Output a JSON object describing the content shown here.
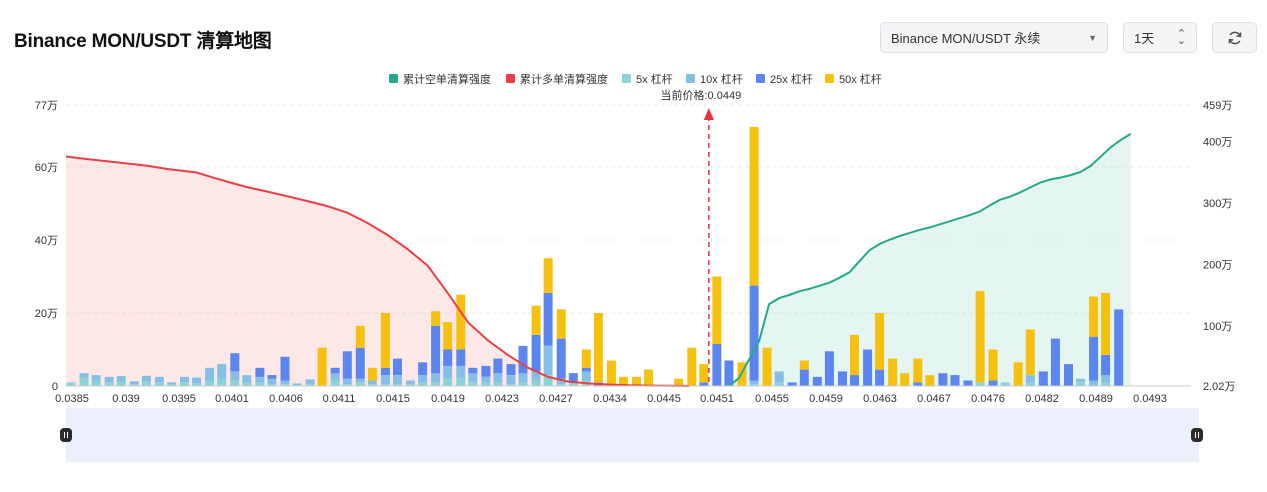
{
  "header": {
    "title": "Binance MON/USDT 清算地图",
    "pair_select": "Binance MON/USDT 永续",
    "range_select": "1天"
  },
  "colors": {
    "short_cum": "#26a98a",
    "long_cum": "#ee3e45",
    "lev_5x": "#88d4d6",
    "lev_10x": "#86bfe6",
    "lev_25x": "#5b86ef",
    "lev_50x": "#f6c10e",
    "price_marker": "#e5323a"
  },
  "chart_data": {
    "type": "bar",
    "legend": [
      {
        "name": "累计空单清算强度",
        "color": "#26a98a"
      },
      {
        "name": "累计多单清算强度",
        "color": "#ee3e45"
      },
      {
        "name": "5x 杠杆",
        "color": "#88d4d6"
      },
      {
        "name": "10x 杠杆",
        "color": "#86bfe6"
      },
      {
        "name": "25x 杠杆",
        "color": "#5b86ef"
      },
      {
        "name": "50x 杠杆",
        "color": "#f6c10e"
      }
    ],
    "legend_position": "top-center",
    "current_price_label": "当前价格:0.0449",
    "current_price": 0.0449,
    "x_ticks": [
      "0.0385",
      "0.039",
      "0.0395",
      "0.0401",
      "0.0406",
      "0.0411",
      "0.0415",
      "0.0419",
      "0.0423",
      "0.0427",
      "0.0434",
      "0.0445",
      "0.0451",
      "0.0455",
      "0.0459",
      "0.0463",
      "0.0467",
      "0.0476",
      "0.0482",
      "0.0489",
      "0.0493"
    ],
    "x_range": [
      0.0385,
      0.0497
    ],
    "y_left_ticks": [
      "0",
      "20万",
      "40万",
      "60万",
      "77万"
    ],
    "y_left_range": [
      0,
      770000
    ],
    "y_right_ticks": [
      "2.02万",
      "100万",
      "200万",
      "300万",
      "400万",
      "459万"
    ],
    "y_right_range": [
      20200,
      4590000
    ],
    "grid": true,
    "bars": [
      {
        "x": 0.03855,
        "l5": 10000,
        "l10": 0,
        "l25": 0,
        "l50": 0
      },
      {
        "x": 0.03868,
        "l5": 20000,
        "l10": 15000,
        "l25": 0,
        "l50": 0
      },
      {
        "x": 0.0388,
        "l5": 15000,
        "l10": 15000,
        "l25": 0,
        "l50": 0
      },
      {
        "x": 0.03893,
        "l5": 10000,
        "l10": 15000,
        "l25": 0,
        "l50": 0
      },
      {
        "x": 0.03905,
        "l5": 12000,
        "l10": 15000,
        "l25": 0,
        "l50": 0
      },
      {
        "x": 0.03918,
        "l5": 5000,
        "l10": 8000,
        "l25": 0,
        "l50": 0
      },
      {
        "x": 0.0393,
        "l5": 13000,
        "l10": 15000,
        "l25": 0,
        "l50": 0
      },
      {
        "x": 0.03943,
        "l5": 10000,
        "l10": 15000,
        "l25": 0,
        "l50": 0
      },
      {
        "x": 0.03955,
        "l5": 5000,
        "l10": 5000,
        "l25": 0,
        "l50": 0
      },
      {
        "x": 0.03968,
        "l5": 10000,
        "l10": 15000,
        "l25": 0,
        "l50": 0
      },
      {
        "x": 0.0398,
        "l5": 8000,
        "l10": 15000,
        "l25": 0,
        "l50": 0
      },
      {
        "x": 0.03993,
        "l5": 15000,
        "l10": 35000,
        "l25": 0,
        "l50": 0
      },
      {
        "x": 0.04005,
        "l5": 20000,
        "l10": 40000,
        "l25": 0,
        "l50": 0
      },
      {
        "x": 0.04018,
        "l5": 15000,
        "l10": 25000,
        "l25": 50000,
        "l50": 0
      },
      {
        "x": 0.0403,
        "l5": 10000,
        "l10": 20000,
        "l25": 0,
        "l50": 0
      },
      {
        "x": 0.04043,
        "l5": 10000,
        "l10": 15000,
        "l25": 25000,
        "l50": 0
      },
      {
        "x": 0.04055,
        "l5": 5000,
        "l10": 15000,
        "l25": 10000,
        "l50": 0
      },
      {
        "x": 0.04068,
        "l5": 5000,
        "l10": 10000,
        "l25": 65000,
        "l50": 0
      },
      {
        "x": 0.0408,
        "l5": 2000,
        "l10": 5000,
        "l25": 0,
        "l50": 0
      },
      {
        "x": 0.04093,
        "l5": 5000,
        "l10": 13000,
        "l25": 0,
        "l50": 0
      },
      {
        "x": 0.04105,
        "l5": 0,
        "l10": 0,
        "l25": 0,
        "l50": 105000
      },
      {
        "x": 0.04118,
        "l5": 15000,
        "l10": 20000,
        "l25": 15000,
        "l50": 0
      },
      {
        "x": 0.0413,
        "l5": 5000,
        "l10": 15000,
        "l25": 75000,
        "l50": 0
      },
      {
        "x": 0.04143,
        "l5": 10000,
        "l10": 10000,
        "l25": 85000,
        "l50": 60000
      },
      {
        "x": 0.04155,
        "l5": 5000,
        "l10": 10000,
        "l25": 0,
        "l50": 35000
      },
      {
        "x": 0.04168,
        "l5": 5000,
        "l10": 25000,
        "l25": 20000,
        "l50": 150000
      },
      {
        "x": 0.0418,
        "l5": 5000,
        "l10": 25000,
        "l25": 45000,
        "l50": 0
      },
      {
        "x": 0.04193,
        "l5": 5000,
        "l10": 10000,
        "l25": 0,
        "l50": 0
      },
      {
        "x": 0.04205,
        "l5": 10000,
        "l10": 20000,
        "l25": 35000,
        "l50": 0
      },
      {
        "x": 0.04218,
        "l5": 10000,
        "l10": 25000,
        "l25": 130000,
        "l50": 40000
      },
      {
        "x": 0.0423,
        "l5": 20000,
        "l10": 35000,
        "l25": 45000,
        "l50": 75000
      },
      {
        "x": 0.04243,
        "l5": 20000,
        "l10": 35000,
        "l25": 45000,
        "l50": 150000
      },
      {
        "x": 0.04255,
        "l5": 10000,
        "l10": 25000,
        "l25": 15000,
        "l50": 0
      },
      {
        "x": 0.04268,
        "l5": 10000,
        "l10": 15000,
        "l25": 30000,
        "l50": 0
      },
      {
        "x": 0.0428,
        "l5": 10000,
        "l10": 25000,
        "l25": 40000,
        "l50": 0
      },
      {
        "x": 0.04293,
        "l5": 5000,
        "l10": 25000,
        "l25": 30000,
        "l50": 0
      },
      {
        "x": 0.04305,
        "l5": 10000,
        "l10": 25000,
        "l25": 75000,
        "l50": 0
      },
      {
        "x": 0.04318,
        "l5": 15000,
        "l10": 25000,
        "l25": 100000,
        "l50": 80000
      },
      {
        "x": 0.0433,
        "l5": 30000,
        "l10": 80000,
        "l25": 145000,
        "l50": 95000
      },
      {
        "x": 0.04343,
        "l5": 5000,
        "l10": 15000,
        "l25": 110000,
        "l50": 80000
      },
      {
        "x": 0.04355,
        "l5": 10000,
        "l10": 0,
        "l25": 25000,
        "l50": 0
      },
      {
        "x": 0.04368,
        "l5": 15000,
        "l10": 25000,
        "l25": 10000,
        "l50": 50000
      },
      {
        "x": 0.0438,
        "l5": 0,
        "l10": 0,
        "l25": 10000,
        "l50": 190000
      },
      {
        "x": 0.04393,
        "l5": 0,
        "l10": 0,
        "l25": 0,
        "l50": 70000
      },
      {
        "x": 0.04405,
        "l5": 0,
        "l10": 0,
        "l25": 0,
        "l50": 25000
      },
      {
        "x": 0.04418,
        "l5": 0,
        "l10": 0,
        "l25": 0,
        "l50": 25000
      },
      {
        "x": 0.0443,
        "l5": 0,
        "l10": 0,
        "l25": 0,
        "l50": 45000
      },
      {
        "x": 0.0446,
        "l5": 0,
        "l10": 0,
        "l25": 0,
        "l50": 20000
      },
      {
        "x": 0.04473,
        "l5": 0,
        "l10": 0,
        "l25": 0,
        "l50": 105000
      },
      {
        "x": 0.04485,
        "l5": 0,
        "l10": 0,
        "l25": 10000,
        "l50": 50000
      },
      {
        "x": 0.04498,
        "l5": 0,
        "l10": 0,
        "l25": 115000,
        "l50": 185000
      },
      {
        "x": 0.0451,
        "l5": 0,
        "l10": 0,
        "l25": 70000,
        "l50": 0
      },
      {
        "x": 0.04523,
        "l5": 0,
        "l10": 0,
        "l25": 0,
        "l50": 65000
      },
      {
        "x": 0.04535,
        "l5": 5000,
        "l10": 10000,
        "l25": 260000,
        "l50": 435000
      },
      {
        "x": 0.04548,
        "l5": 0,
        "l10": 0,
        "l25": 0,
        "l50": 105000
      },
      {
        "x": 0.0456,
        "l5": 10000,
        "l10": 30000,
        "l25": 0,
        "l50": 0
      },
      {
        "x": 0.04573,
        "l5": 0,
        "l10": 0,
        "l25": 10000,
        "l50": 0
      },
      {
        "x": 0.04585,
        "l5": 0,
        "l10": 0,
        "l25": 45000,
        "l50": 25000
      },
      {
        "x": 0.04598,
        "l5": 0,
        "l10": 0,
        "l25": 25000,
        "l50": 0
      },
      {
        "x": 0.0461,
        "l5": 0,
        "l10": 0,
        "l25": 95000,
        "l50": 0
      },
      {
        "x": 0.04623,
        "l5": 0,
        "l10": 0,
        "l25": 40000,
        "l50": 0
      },
      {
        "x": 0.04635,
        "l5": 0,
        "l10": 0,
        "l25": 30000,
        "l50": 110000
      },
      {
        "x": 0.04648,
        "l5": 0,
        "l10": 0,
        "l25": 100000,
        "l50": 0
      },
      {
        "x": 0.0466,
        "l5": 0,
        "l10": 0,
        "l25": 45000,
        "l50": 155000
      },
      {
        "x": 0.04673,
        "l5": 0,
        "l10": 0,
        "l25": 0,
        "l50": 75000
      },
      {
        "x": 0.04685,
        "l5": 0,
        "l10": 0,
        "l25": 0,
        "l50": 35000
      },
      {
        "x": 0.04698,
        "l5": 0,
        "l10": 0,
        "l25": 10000,
        "l50": 65000
      },
      {
        "x": 0.0471,
        "l5": 0,
        "l10": 0,
        "l25": 0,
        "l50": 30000
      },
      {
        "x": 0.04723,
        "l5": 0,
        "l10": 0,
        "l25": 35000,
        "l50": 0
      },
      {
        "x": 0.04735,
        "l5": 0,
        "l10": 0,
        "l25": 30000,
        "l50": 0
      },
      {
        "x": 0.04748,
        "l5": 0,
        "l10": 0,
        "l25": 15000,
        "l50": 0
      },
      {
        "x": 0.0476,
        "l5": 10000,
        "l10": 0,
        "l25": 0,
        "l50": 250000
      },
      {
        "x": 0.04773,
        "l5": 0,
        "l10": 0,
        "l25": 15000,
        "l50": 85000
      },
      {
        "x": 0.04785,
        "l5": 10000,
        "l10": 0,
        "l25": 0,
        "l50": 0
      },
      {
        "x": 0.04798,
        "l5": 0,
        "l10": 0,
        "l25": 0,
        "l50": 65000
      },
      {
        "x": 0.0481,
        "l5": 10000,
        "l10": 20000,
        "l25": 0,
        "l50": 125000
      },
      {
        "x": 0.04823,
        "l5": 0,
        "l10": 0,
        "l25": 40000,
        "l50": 0
      },
      {
        "x": 0.04835,
        "l5": 0,
        "l10": 0,
        "l25": 130000,
        "l50": 0
      },
      {
        "x": 0.04848,
        "l5": 0,
        "l10": 0,
        "l25": 60000,
        "l50": 0
      },
      {
        "x": 0.0486,
        "l5": 10000,
        "l10": 10000,
        "l25": 0,
        "l50": 0
      },
      {
        "x": 0.04873,
        "l5": 0,
        "l10": 15000,
        "l25": 120000,
        "l50": 110000
      },
      {
        "x": 0.04885,
        "l5": 10000,
        "l10": 20000,
        "l25": 55000,
        "l50": 170000
      },
      {
        "x": 0.04898,
        "l5": 0,
        "l10": 0,
        "l25": 210000,
        "l50": 0
      }
    ],
    "long_cumulative": [
      [
        0.0385,
        629000
      ],
      [
        0.0387,
        622000
      ],
      [
        0.039,
        613000
      ],
      [
        0.0393,
        604000
      ],
      [
        0.0395,
        595000
      ],
      [
        0.0398,
        585000
      ],
      [
        0.04,
        568000
      ],
      [
        0.0403,
        545000
      ],
      [
        0.0405,
        533000
      ],
      [
        0.0407,
        520000
      ],
      [
        0.0409,
        507000
      ],
      [
        0.0411,
        493000
      ],
      [
        0.0413,
        475000
      ],
      [
        0.0415,
        447000
      ],
      [
        0.0417,
        414000
      ],
      [
        0.0419,
        375000
      ],
      [
        0.0421,
        330000
      ],
      [
        0.0423,
        255000
      ],
      [
        0.0425,
        175000
      ],
      [
        0.0427,
        125000
      ],
      [
        0.0429,
        85000
      ],
      [
        0.0431,
        50000
      ],
      [
        0.0433,
        25000
      ],
      [
        0.0435,
        12000
      ],
      [
        0.0437,
        7000
      ],
      [
        0.0439,
        4000
      ],
      [
        0.0441,
        2000
      ],
      [
        0.0443,
        1000
      ],
      [
        0.0445,
        500
      ],
      [
        0.0447,
        0
      ]
    ],
    "short_cumulative": [
      [
        0.0451,
        20200
      ],
      [
        0.0452,
        150000
      ],
      [
        0.0453,
        450000
      ],
      [
        0.0454,
        750000
      ],
      [
        0.0455,
        1350000
      ],
      [
        0.0456,
        1450000
      ],
      [
        0.0457,
        1500000
      ],
      [
        0.0458,
        1560000
      ],
      [
        0.0459,
        1600000
      ],
      [
        0.046,
        1650000
      ],
      [
        0.0461,
        1700000
      ],
      [
        0.0462,
        1780000
      ],
      [
        0.0463,
        1870000
      ],
      [
        0.0464,
        2050000
      ],
      [
        0.0465,
        2230000
      ],
      [
        0.0466,
        2330000
      ],
      [
        0.0467,
        2400000
      ],
      [
        0.0468,
        2460000
      ],
      [
        0.0469,
        2510000
      ],
      [
        0.047,
        2560000
      ],
      [
        0.0471,
        2600000
      ],
      [
        0.0472,
        2650000
      ],
      [
        0.0473,
        2700000
      ],
      [
        0.0474,
        2750000
      ],
      [
        0.0475,
        2800000
      ],
      [
        0.0476,
        2860000
      ],
      [
        0.0477,
        2960000
      ],
      [
        0.0478,
        3050000
      ],
      [
        0.0479,
        3100000
      ],
      [
        0.048,
        3170000
      ],
      [
        0.0481,
        3250000
      ],
      [
        0.0482,
        3330000
      ],
      [
        0.0483,
        3380000
      ],
      [
        0.0484,
        3410000
      ],
      [
        0.0485,
        3450000
      ],
      [
        0.0486,
        3500000
      ],
      [
        0.0487,
        3600000
      ],
      [
        0.0488,
        3750000
      ],
      [
        0.0489,
        3900000
      ],
      [
        0.049,
        4020000
      ],
      [
        0.0491,
        4120000
      ]
    ]
  }
}
